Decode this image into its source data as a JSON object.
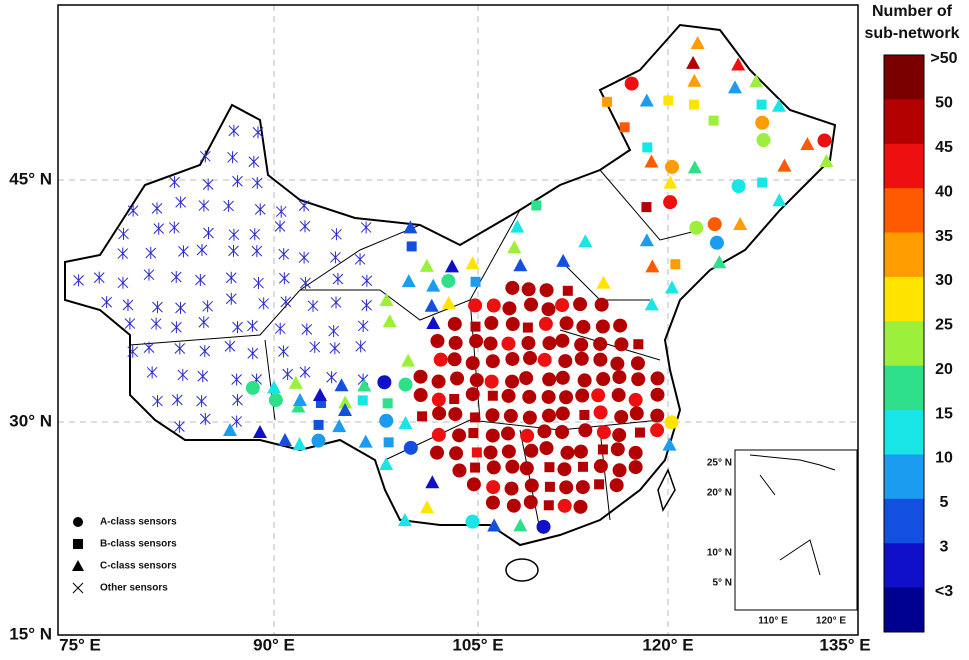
{
  "map": {
    "lat_labels": [
      "45° N",
      "30° N",
      "15° N"
    ],
    "lon_labels": [
      "75° E",
      "90° E",
      "105° E",
      "120° E",
      "135° E"
    ],
    "legend": [
      "A-class sensors",
      "B-class sensors",
      "C-class sensors",
      "Other sensors"
    ],
    "colorbar": {
      "title": [
        "Number of",
        "sub-network"
      ],
      "labels": [
        ">50",
        "50",
        "45",
        "40",
        "35",
        "30",
        "25",
        "20",
        "15",
        "10",
        "5",
        "3",
        "<3"
      ]
    },
    "inset": {
      "lat_labels": [
        "25° N",
        "20° N",
        "10° N",
        "5° N"
      ],
      "lon_labels": [
        "110° E",
        "120° E"
      ]
    }
  }
}
